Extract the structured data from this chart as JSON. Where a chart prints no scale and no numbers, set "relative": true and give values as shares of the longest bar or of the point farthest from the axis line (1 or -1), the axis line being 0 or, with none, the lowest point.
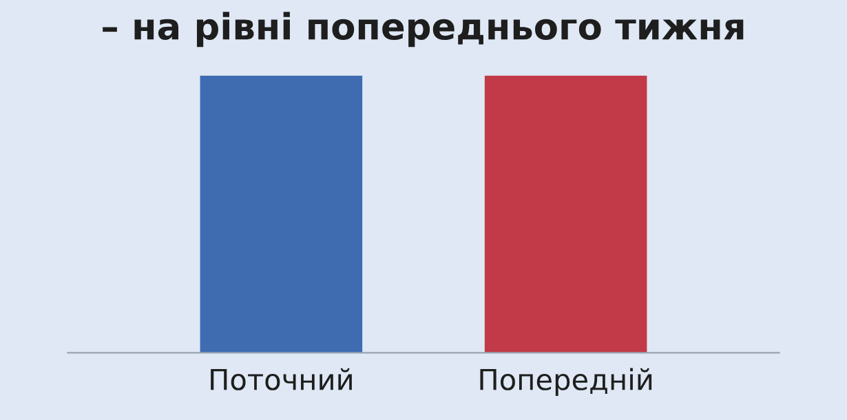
{
  "chart_data": {
    "type": "bar",
    "title": "– на рівні попереднього тижня",
    "categories": [
      "Поточний",
      "Попередній"
    ],
    "values": [
      1,
      1
    ],
    "colors": [
      "#3f6cb1",
      "#c23a48"
    ],
    "relative": true,
    "grid": false,
    "legend": false
  }
}
